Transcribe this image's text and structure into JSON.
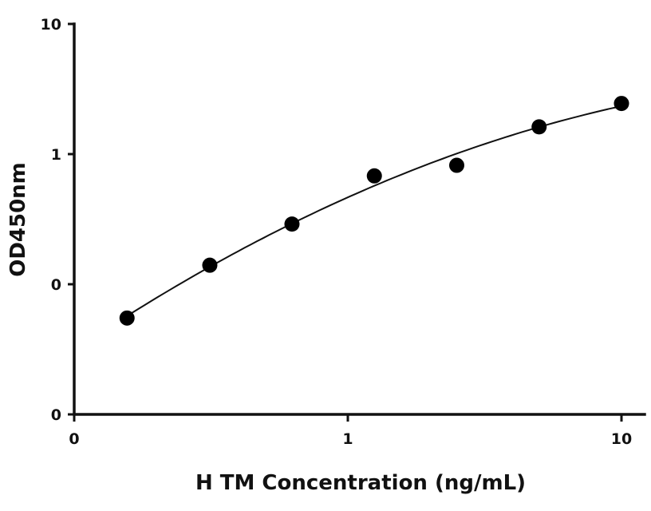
{
  "chart_data": {
    "type": "scatter",
    "xlabel": "H TM Concentration (ng/mL)",
    "ylabel": "OD450nm",
    "x_scale": "log",
    "y_scale": "log",
    "x_ticks": [
      {
        "value": 0.1,
        "label": "0"
      },
      {
        "value": 1,
        "label": "1"
      },
      {
        "value": 10,
        "label": "10"
      }
    ],
    "y_ticks": [
      {
        "value": 0.01,
        "label": "0"
      },
      {
        "value": 0.1,
        "label": "0"
      },
      {
        "value": 1,
        "label": "1"
      },
      {
        "value": 10,
        "label": "10"
      }
    ],
    "xlim": [
      0.1,
      12
    ],
    "ylim": [
      0.01,
      10
    ],
    "grid": false,
    "legend": "none",
    "points": [
      {
        "x": 0.156,
        "y": 0.055
      },
      {
        "x": 0.313,
        "y": 0.14
      },
      {
        "x": 0.625,
        "y": 0.29
      },
      {
        "x": 1.25,
        "y": 0.68
      },
      {
        "x": 2.5,
        "y": 0.82
      },
      {
        "x": 5,
        "y": 1.62
      },
      {
        "x": 10,
        "y": 2.45
      }
    ],
    "fit_curve": true,
    "colors": {
      "points": "#000000",
      "curve": "#111111",
      "axes": "#111111"
    }
  }
}
